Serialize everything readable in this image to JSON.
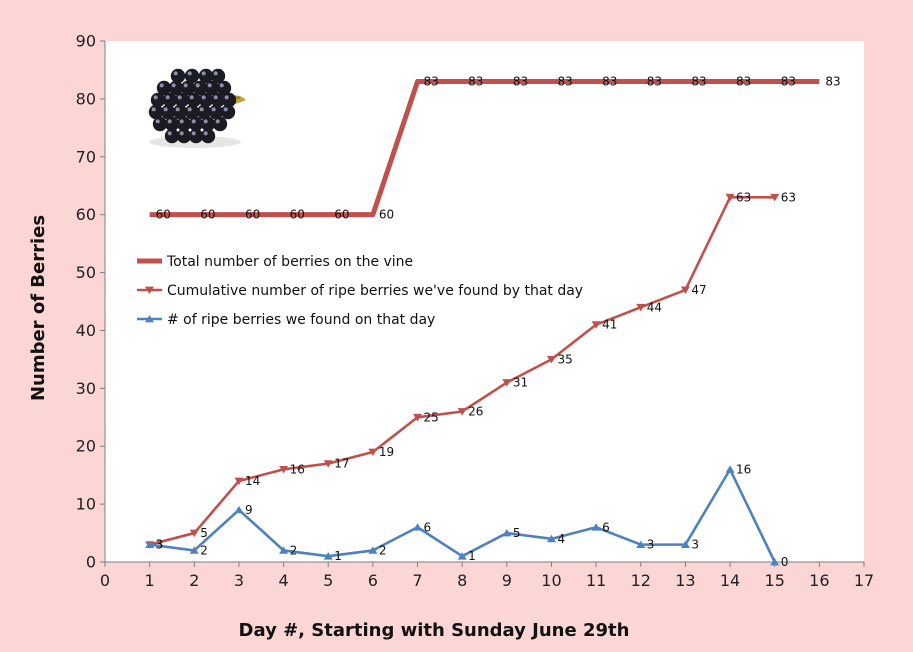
{
  "chart_data": {
    "type": "line",
    "title": "",
    "xlabel": "Day #, Starting with Sunday June 29th",
    "ylabel": "Number of Berries",
    "xlim": [
      0,
      17
    ],
    "ylim": [
      0,
      90
    ],
    "xticks": [
      0,
      1,
      2,
      3,
      4,
      5,
      6,
      7,
      8,
      9,
      10,
      11,
      12,
      13,
      14,
      15,
      16,
      17
    ],
    "yticks": [
      0,
      10,
      20,
      30,
      40,
      50,
      60,
      70,
      80,
      90
    ],
    "grid": false,
    "legend_position": "left",
    "background_color": "#fbd6d4",
    "plot_background_color": "#ffffff",
    "decorative_image": "blackberry-image",
    "series": [
      {
        "name": "Total number of berries on the vine",
        "color": "#c0504d",
        "marker": "none",
        "x": [
          1,
          2,
          3,
          4,
          5,
          6,
          7,
          8,
          9,
          10,
          11,
          12,
          13,
          14,
          15,
          16
        ],
        "values": [
          60,
          60,
          60,
          60,
          60,
          60,
          83,
          83,
          83,
          83,
          83,
          83,
          83,
          83,
          83,
          83
        ]
      },
      {
        "name": "Cumulative number of ripe berries we've found by that day",
        "color": "#c0504d",
        "marker": "triangle-down",
        "x": [
          1,
          2,
          3,
          4,
          5,
          6,
          7,
          8,
          9,
          10,
          11,
          12,
          13,
          14,
          15
        ],
        "values": [
          3,
          5,
          14,
          16,
          17,
          19,
          25,
          26,
          31,
          35,
          41,
          44,
          47,
          63,
          63
        ]
      },
      {
        "name": "# of ripe berries we found on that day",
        "color": "#4f81bd",
        "marker": "triangle-up",
        "x": [
          1,
          2,
          3,
          4,
          5,
          6,
          7,
          8,
          9,
          10,
          11,
          12,
          13,
          14,
          15
        ],
        "values": [
          3,
          2,
          9,
          2,
          1,
          2,
          6,
          1,
          5,
          4,
          6,
          3,
          3,
          16,
          0
        ]
      }
    ]
  }
}
